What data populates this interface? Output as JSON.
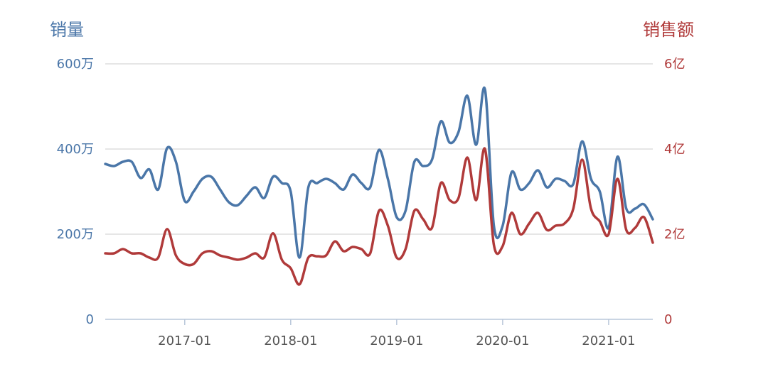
{
  "chart_data": {
    "type": "line",
    "x": [
      "2016-04",
      "2016-05",
      "2016-06",
      "2016-07",
      "2016-08",
      "2016-09",
      "2016-10",
      "2016-11",
      "2016-12",
      "2017-01",
      "2017-02",
      "2017-03",
      "2017-04",
      "2017-05",
      "2017-06",
      "2017-07",
      "2017-08",
      "2017-09",
      "2017-10",
      "2017-11",
      "2017-12",
      "2018-01",
      "2018-02",
      "2018-03",
      "2018-04",
      "2018-05",
      "2018-06",
      "2018-07",
      "2018-08",
      "2018-09",
      "2018-10",
      "2018-11",
      "2018-12",
      "2019-01",
      "2019-02",
      "2019-03",
      "2019-04",
      "2019-05",
      "2019-06",
      "2019-07",
      "2019-08",
      "2019-09",
      "2019-10",
      "2019-11",
      "2019-12",
      "2020-01",
      "2020-02",
      "2020-03",
      "2020-04",
      "2020-05",
      "2020-06",
      "2020-07",
      "2020-08",
      "2020-09",
      "2020-10",
      "2020-11",
      "2020-12",
      "2021-01",
      "2021-02",
      "2021-03",
      "2021-04",
      "2021-05",
      "2021-06"
    ],
    "x_ticks": [
      "2017-01",
      "2018-01",
      "2019-01",
      "2020-01",
      "2021-01"
    ],
    "y_left": {
      "label": "销量",
      "ticks": [
        "0",
        "200万",
        "400万",
        "600万"
      ],
      "min": 0,
      "max": 600,
      "color": "#4a76a8"
    },
    "y_right": {
      "label": "销售额",
      "ticks": [
        "0",
        "2亿",
        "4亿",
        "6亿"
      ],
      "min": 0,
      "max": 6,
      "color": "#b03a3a"
    },
    "grid": true,
    "series": [
      {
        "axis": "left",
        "color": "#4a76a8",
        "values": [
          365,
          360,
          370,
          370,
          332,
          352,
          305,
          402,
          370,
          278,
          300,
          330,
          335,
          305,
          275,
          268,
          290,
          310,
          285,
          335,
          320,
          300,
          145,
          310,
          320,
          330,
          320,
          305,
          340,
          320,
          310,
          398,
          330,
          240,
          255,
          370,
          360,
          375,
          465,
          415,
          440,
          525,
          410,
          540,
          220,
          220,
          345,
          305,
          320,
          350,
          310,
          330,
          325,
          318,
          418,
          330,
          300,
          215,
          382,
          260,
          260,
          270,
          235
        ]
      },
      {
        "axis": "right",
        "color": "#b03a3a",
        "values": [
          1.55,
          1.55,
          1.65,
          1.55,
          1.55,
          1.45,
          1.45,
          2.12,
          1.5,
          1.3,
          1.3,
          1.55,
          1.6,
          1.5,
          1.45,
          1.4,
          1.45,
          1.55,
          1.45,
          2.02,
          1.4,
          1.2,
          0.82,
          1.45,
          1.48,
          1.5,
          1.83,
          1.6,
          1.7,
          1.65,
          1.55,
          2.55,
          2.2,
          1.45,
          1.65,
          2.55,
          2.35,
          2.15,
          3.2,
          2.8,
          2.85,
          3.8,
          2.8,
          4.0,
          1.75,
          1.72,
          2.5,
          2.0,
          2.25,
          2.5,
          2.1,
          2.2,
          2.25,
          2.6,
          3.75,
          2.6,
          2.3,
          2.0,
          3.3,
          2.1,
          2.15,
          2.4,
          1.8
        ]
      }
    ]
  }
}
